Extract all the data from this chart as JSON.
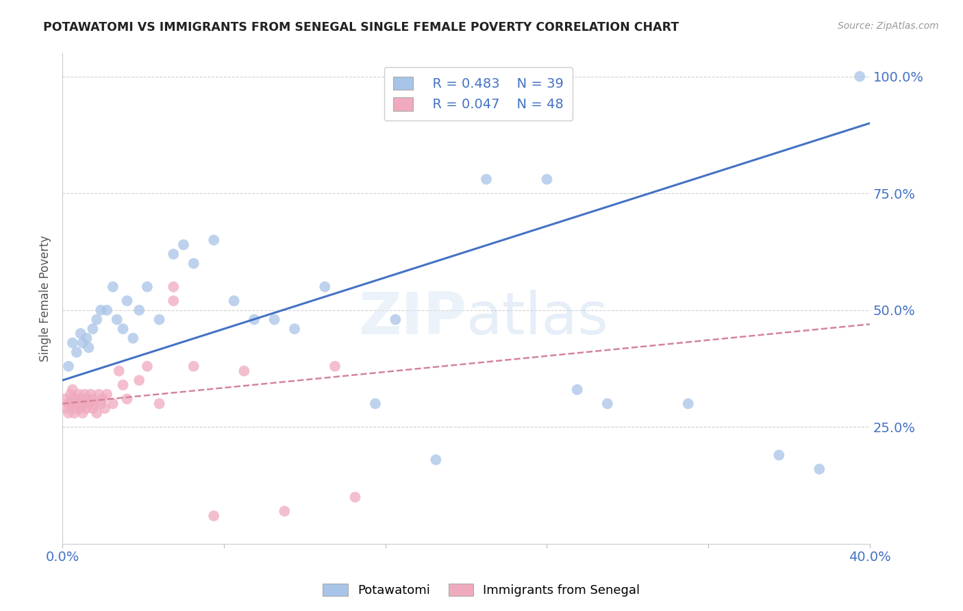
{
  "title": "POTAWATOMI VS IMMIGRANTS FROM SENEGAL SINGLE FEMALE POVERTY CORRELATION CHART",
  "source": "Source: ZipAtlas.com",
  "ylabel": "Single Female Poverty",
  "ytick_labels": [
    "100.0%",
    "75.0%",
    "50.0%",
    "25.0%"
  ],
  "ytick_values": [
    1.0,
    0.75,
    0.5,
    0.25
  ],
  "xlim": [
    0.0,
    0.4
  ],
  "ylim": [
    0.0,
    1.05
  ],
  "legend_r1": "R = 0.483",
  "legend_n1": "N = 39",
  "legend_r2": "R = 0.047",
  "legend_n2": "N = 48",
  "label1": "Potawatomi",
  "label2": "Immigrants from Senegal",
  "color1": "#a8c4e8",
  "color2": "#f0aabe",
  "trend1_color": "#4472c4",
  "trend2_color": "#d4849a",
  "watermark_zip": "ZIP",
  "watermark_atlas": "atlas",
  "potawatomi_x": [
    0.003,
    0.005,
    0.007,
    0.009,
    0.01,
    0.012,
    0.013,
    0.015,
    0.017,
    0.019,
    0.022,
    0.025,
    0.027,
    0.03,
    0.032,
    0.035,
    0.038,
    0.042,
    0.048,
    0.055,
    0.06,
    0.065,
    0.075,
    0.085,
    0.095,
    0.105,
    0.115,
    0.13,
    0.155,
    0.165,
    0.185,
    0.21,
    0.24,
    0.255,
    0.27,
    0.31,
    0.355,
    0.375,
    0.395
  ],
  "potawatomi_y": [
    0.38,
    0.43,
    0.41,
    0.45,
    0.43,
    0.44,
    0.42,
    0.46,
    0.48,
    0.5,
    0.5,
    0.55,
    0.48,
    0.46,
    0.52,
    0.44,
    0.5,
    0.55,
    0.48,
    0.62,
    0.64,
    0.6,
    0.65,
    0.52,
    0.48,
    0.48,
    0.46,
    0.55,
    0.3,
    0.48,
    0.18,
    0.78,
    0.78,
    0.33,
    0.3,
    0.3,
    0.19,
    0.16,
    1.0
  ],
  "senegal_x": [
    0.001,
    0.002,
    0.003,
    0.003,
    0.004,
    0.004,
    0.005,
    0.005,
    0.006,
    0.006,
    0.007,
    0.007,
    0.008,
    0.008,
    0.009,
    0.009,
    0.01,
    0.01,
    0.011,
    0.011,
    0.012,
    0.012,
    0.013,
    0.014,
    0.015,
    0.015,
    0.016,
    0.017,
    0.018,
    0.019,
    0.02,
    0.021,
    0.022,
    0.025,
    0.028,
    0.03,
    0.032,
    0.038,
    0.042,
    0.048,
    0.055,
    0.065,
    0.075,
    0.09,
    0.11,
    0.135,
    0.145,
    0.055
  ],
  "senegal_y": [
    0.31,
    0.29,
    0.3,
    0.28,
    0.32,
    0.3,
    0.33,
    0.31,
    0.3,
    0.28,
    0.29,
    0.31,
    0.3,
    0.32,
    0.29,
    0.31,
    0.3,
    0.28,
    0.32,
    0.3,
    0.29,
    0.31,
    0.3,
    0.32,
    0.29,
    0.31,
    0.3,
    0.28,
    0.32,
    0.3,
    0.31,
    0.29,
    0.32,
    0.3,
    0.37,
    0.34,
    0.31,
    0.35,
    0.38,
    0.3,
    0.52,
    0.38,
    0.06,
    0.37,
    0.07,
    0.38,
    0.1,
    0.55
  ],
  "trend1_x0": 0.0,
  "trend1_y0": 0.35,
  "trend1_x1": 0.4,
  "trend1_y1": 0.9,
  "trend2_x0": 0.0,
  "trend2_y0": 0.3,
  "trend2_x1": 0.4,
  "trend2_y1": 0.47
}
